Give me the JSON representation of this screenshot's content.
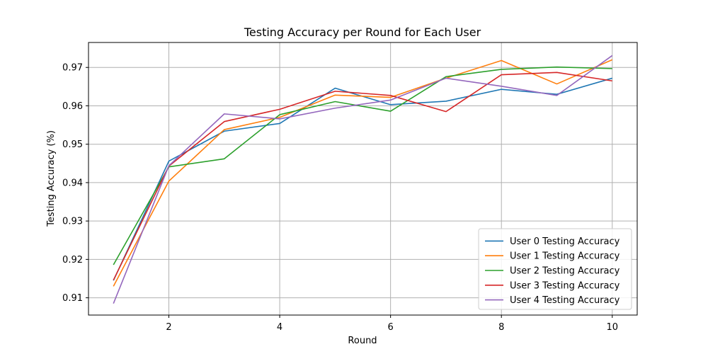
{
  "chart_data": {
    "type": "line",
    "title": "Testing Accuracy per Round for Each User",
    "xlabel": "Round",
    "ylabel": "Testing Accuracy (%)",
    "x": [
      1,
      2,
      3,
      4,
      5,
      6,
      7,
      8,
      9,
      10
    ],
    "xlim": [
      0.55,
      10.45
    ],
    "ylim": [
      0.9055,
      0.9765
    ],
    "xticks": [
      2,
      4,
      6,
      8,
      10
    ],
    "xtick_labels": [
      "2",
      "4",
      "6",
      "8",
      "10"
    ],
    "yticks": [
      0.91,
      0.92,
      0.93,
      0.94,
      0.95,
      0.96,
      0.97
    ],
    "ytick_labels": [
      "0.91",
      "0.92",
      "0.93",
      "0.94",
      "0.95",
      "0.96",
      "0.97"
    ],
    "grid": true,
    "legend_position": "lower-right",
    "series": [
      {
        "name": "User 0 Testing Accuracy",
        "color": "#1f77b4",
        "values": [
          0.9145,
          0.9456,
          0.9534,
          0.9554,
          0.9646,
          0.9603,
          0.9612,
          0.9643,
          0.963,
          0.9672
        ]
      },
      {
        "name": "User 1 Testing Accuracy",
        "color": "#ff7f0e",
        "values": [
          0.913,
          0.9404,
          0.9538,
          0.957,
          0.9628,
          0.9622,
          0.9672,
          0.9718,
          0.9657,
          0.972
        ]
      },
      {
        "name": "User 2 Testing Accuracy",
        "color": "#2ca02c",
        "values": [
          0.9186,
          0.9441,
          0.9462,
          0.9577,
          0.9611,
          0.9586,
          0.9676,
          0.9695,
          0.9701,
          0.9697
        ]
      },
      {
        "name": "User 3 Testing Accuracy",
        "color": "#d62728",
        "values": [
          0.9146,
          0.9443,
          0.9559,
          0.9591,
          0.9638,
          0.9627,
          0.9585,
          0.9681,
          0.9687,
          0.9665
        ]
      },
      {
        "name": "User 4 Testing Accuracy",
        "color": "#9467bd",
        "values": [
          0.9085,
          0.9444,
          0.9579,
          0.9566,
          0.9594,
          0.9615,
          0.9672,
          0.9651,
          0.9627,
          0.9731
        ]
      }
    ]
  }
}
